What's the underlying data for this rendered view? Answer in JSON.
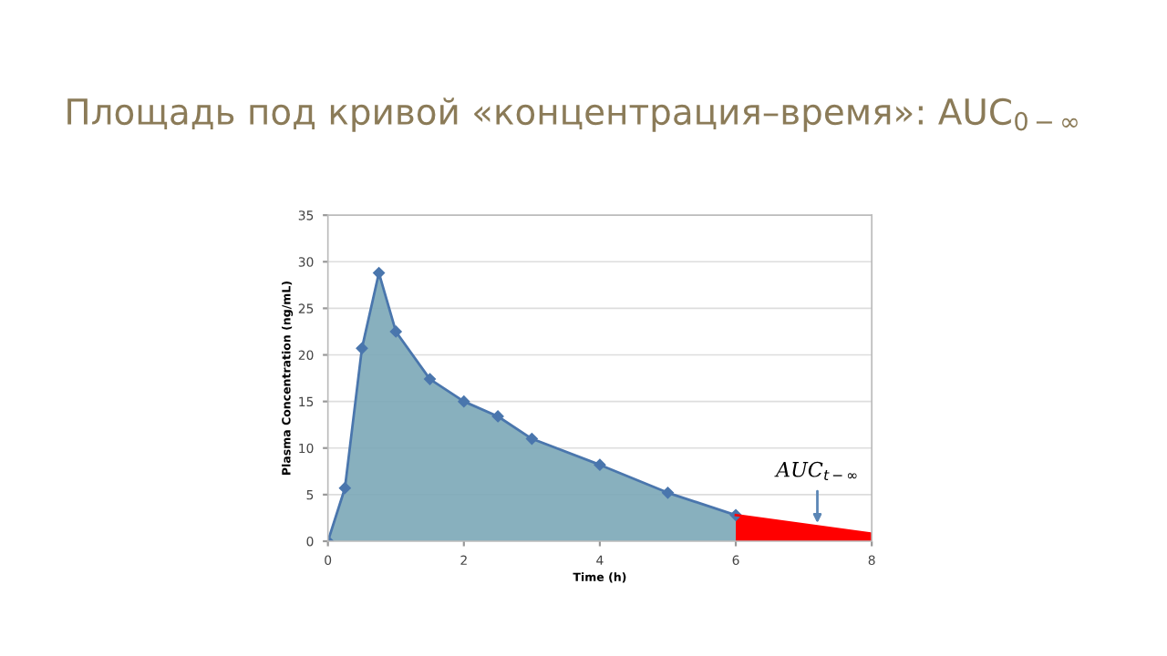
{
  "chart_data": {
    "type": "area",
    "title": "Площадь под кривой «концентрация–время»: AUC$_{0−∞}$",
    "xlabel": "Time (h)",
    "ylabel": "Plasma Concentration (ng/mL)",
    "series": [
      {
        "color": "#7ba7b7",
        "marker": "diamond",
        "x": [
          0,
          0.25,
          0.5,
          0.75,
          1,
          1.5,
          2,
          2.5,
          3,
          4,
          5,
          6
        ],
        "values": [
          0,
          5.7,
          20.7,
          28.8,
          22.5,
          17.4,
          15,
          13.4,
          11,
          8.2,
          5.2,
          2.8
        ]
      },
      {
        "color": "#ff0000",
        "marker": "none",
        "x": [
          6,
          8
        ],
        "values": [
          2.8,
          0.8
        ]
      }
    ],
    "annotations": [
      {
        "text": "AUC$_{t−∞}$",
        "x": 7.2,
        "y": 1.4
      }
    ],
    "xlim": [
      0,
      8
    ],
    "xticks": [
      0,
      2,
      4,
      6,
      8
    ],
    "ylim": [
      0,
      35
    ],
    "yticks": [
      0,
      5,
      10,
      15,
      20,
      25,
      30,
      35
    ],
    "grid": "y"
  }
}
